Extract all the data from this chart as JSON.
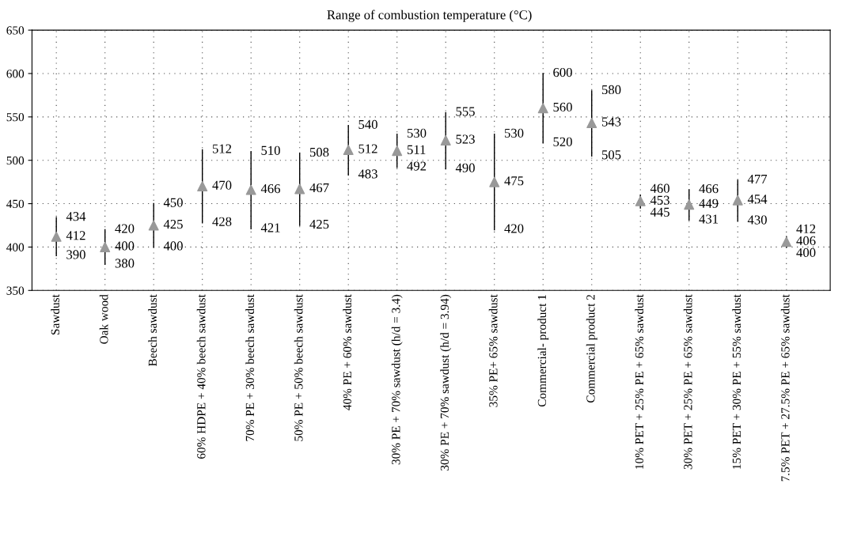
{
  "chart_data": {
    "type": "scatter",
    "title": "Range of combustion temperature (°C)",
    "categories": [
      "Sawdust",
      "Oak wood",
      "Beech sawdust",
      "60% HDPE + 40% beech sawdust",
      "70% PE + 30% beech sawdust",
      "50% PE + 50% beech sawdust",
      "40% PE + 60% sawdust",
      "30% PE + 70% sawdust (h/d = 3.4)",
      "30% PE + 70% sawdust (h/d = 3.94)",
      "35% PE+ 65% sawdust",
      "Commercial- product 1",
      "Commercial product 2",
      "10% PET + 25% PE + 65% sawdust",
      "30% PET + 25% PE + 65% sawdust",
      "15% PET + 30% PE + 55% sawdust",
      "7.5% PET + 27.5% PE + 65% sawdust"
    ],
    "series": [
      {
        "color": "#999999",
        "values": [
          412,
          400,
          425,
          470,
          466,
          467,
          512,
          511,
          523,
          475,
          560,
          543,
          453,
          449,
          454,
          406
        ],
        "errors": [
          [
            390,
            434
          ],
          [
            380,
            420
          ],
          [
            400,
            450
          ],
          [
            428,
            512
          ],
          [
            421,
            510
          ],
          [
            425,
            508
          ],
          [
            483,
            540
          ],
          [
            492,
            530
          ],
          [
            490,
            555
          ],
          [
            420,
            530
          ],
          [
            520,
            600
          ],
          [
            505,
            580
          ],
          [
            445,
            460
          ],
          [
            431,
            466
          ],
          [
            430,
            477
          ],
          [
            400,
            412
          ]
        ],
        "value_labels": [
          "412",
          "400",
          "425",
          "470",
          "466",
          "467",
          "512",
          "511",
          "523",
          "475",
          "560",
          "543",
          "453",
          "449",
          "454",
          "406"
        ]
      }
    ],
    "annotations": [
      {
        "text": "390",
        "x": "Sawdust",
        "y": 390
      },
      {
        "text": "434",
        "x": "Sawdust",
        "y": 434
      },
      {
        "text": "380",
        "x": "Oak wood",
        "y": 380
      },
      {
        "text": "420",
        "x": "Oak wood",
        "y": 420
      },
      {
        "text": "400",
        "x": "Beech sawdust",
        "y": 400
      },
      {
        "text": "450",
        "x": "Beech sawdust",
        "y": 450
      },
      {
        "text": "428",
        "x": "60% HDPE + 40% beech sawdust",
        "y": 428
      },
      {
        "text": "512",
        "x": "60% HDPE + 40% beech sawdust",
        "y": 512
      },
      {
        "text": "421",
        "x": "70% PE + 30% beech sawdust",
        "y": 421
      },
      {
        "text": "510",
        "x": "70% PE + 30% beech sawdust",
        "y": 510
      },
      {
        "text": "425",
        "x": "50% PE + 50% beech sawdust",
        "y": 425
      },
      {
        "text": "508",
        "x": "50% PE + 50% beech sawdust",
        "y": 508
      },
      {
        "text": "483",
        "x": "40% PE + 60% sawdust",
        "y": 483
      },
      {
        "text": "540",
        "x": "40% PE + 60% sawdust",
        "y": 540
      },
      {
        "text": "492",
        "x": "30% PE + 70% sawdust (h/d = 3.4)",
        "y": 492
      },
      {
        "text": "530",
        "x": "30% PE + 70% sawdust (h/d = 3.4)",
        "y": 530
      },
      {
        "text": "490",
        "x": "30% PE + 70% sawdust (h/d = 3.94)",
        "y": 490
      },
      {
        "text": "555",
        "x": "30% PE + 70% sawdust (h/d = 3.94)",
        "y": 555
      },
      {
        "text": "420",
        "x": "35% PE+ 65% sawdust",
        "y": 420
      },
      {
        "text": "530",
        "x": "35% PE+ 65% sawdust",
        "y": 530
      },
      {
        "text": "520",
        "x": "Commercial- product 1",
        "y": 520
      },
      {
        "text": "600",
        "x": "Commercial- product 1",
        "y": 600
      },
      {
        "text": "505",
        "x": "Commercial product 2",
        "y": 505
      },
      {
        "text": "580",
        "x": "Commercial product 2",
        "y": 580
      },
      {
        "text": "445",
        "x": "10% PET + 25% PE + 65% sawdust",
        "y": 445
      },
      {
        "text": "460",
        "x": "10% PET + 25% PE + 65% sawdust",
        "y": 460
      },
      {
        "text": "431",
        "x": "30% PET + 25% PE + 65% sawdust",
        "y": 431
      },
      {
        "text": "466",
        "x": "30% PET + 25% PE + 65% sawdust",
        "y": 466
      },
      {
        "text": "430",
        "x": "15% PET + 30% PE + 55% sawdust",
        "y": 430
      },
      {
        "text": "477",
        "x": "15% PET + 30% PE + 55% sawdust",
        "y": 477
      },
      {
        "text": "400",
        "x": "7.5% PET + 27.5% PE + 65% sawdust",
        "y": 400
      },
      {
        "text": "412",
        "x": "7.5% PET + 27.5% PE + 65% sawdust",
        "y": 412
      }
    ],
    "ylim": [
      350,
      650
    ],
    "yticks": [
      350,
      400,
      450,
      500,
      550,
      600,
      650
    ],
    "grid": true,
    "marker": "triangle",
    "legend": false
  }
}
